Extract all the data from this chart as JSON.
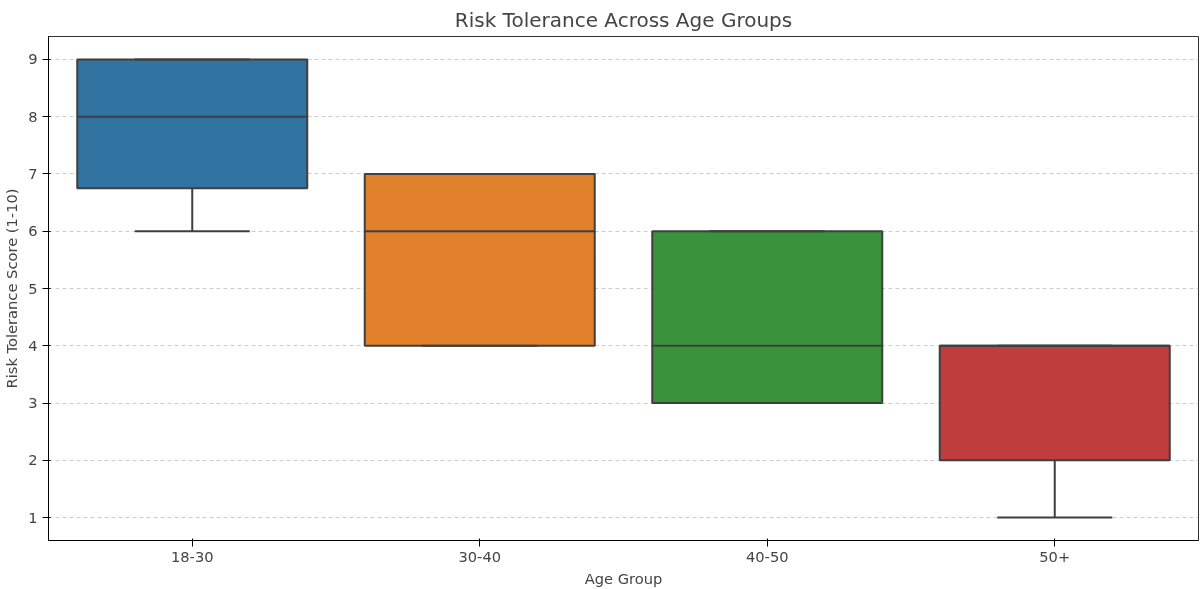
{
  "chart_data": {
    "type": "box",
    "title": "Risk Tolerance Across Age Groups",
    "xlabel": "Age Group",
    "ylabel": "Risk Tolerance Score (1-10)",
    "categories": [
      "18-30",
      "30-40",
      "40-50",
      "50+"
    ],
    "colors": [
      "#3274a1",
      "#e1812c",
      "#3a923a",
      "#c03d3e"
    ],
    "boxes": [
      {
        "low": 6,
        "q1": 6.75,
        "median": 8,
        "q3": 9,
        "high": 9
      },
      {
        "low": 4,
        "q1": 4,
        "median": 6,
        "q3": 7,
        "high": 7
      },
      {
        "low": 3,
        "q1": 3,
        "median": 4,
        "q3": 6,
        "high": 6
      },
      {
        "low": 1,
        "q1": 2,
        "median": 4,
        "q3": 4,
        "high": 4
      }
    ],
    "ylim": [
      0.6,
      9.4
    ],
    "yticks": [
      1,
      2,
      3,
      4,
      5,
      6,
      7,
      8,
      9
    ],
    "grid": "y"
  }
}
